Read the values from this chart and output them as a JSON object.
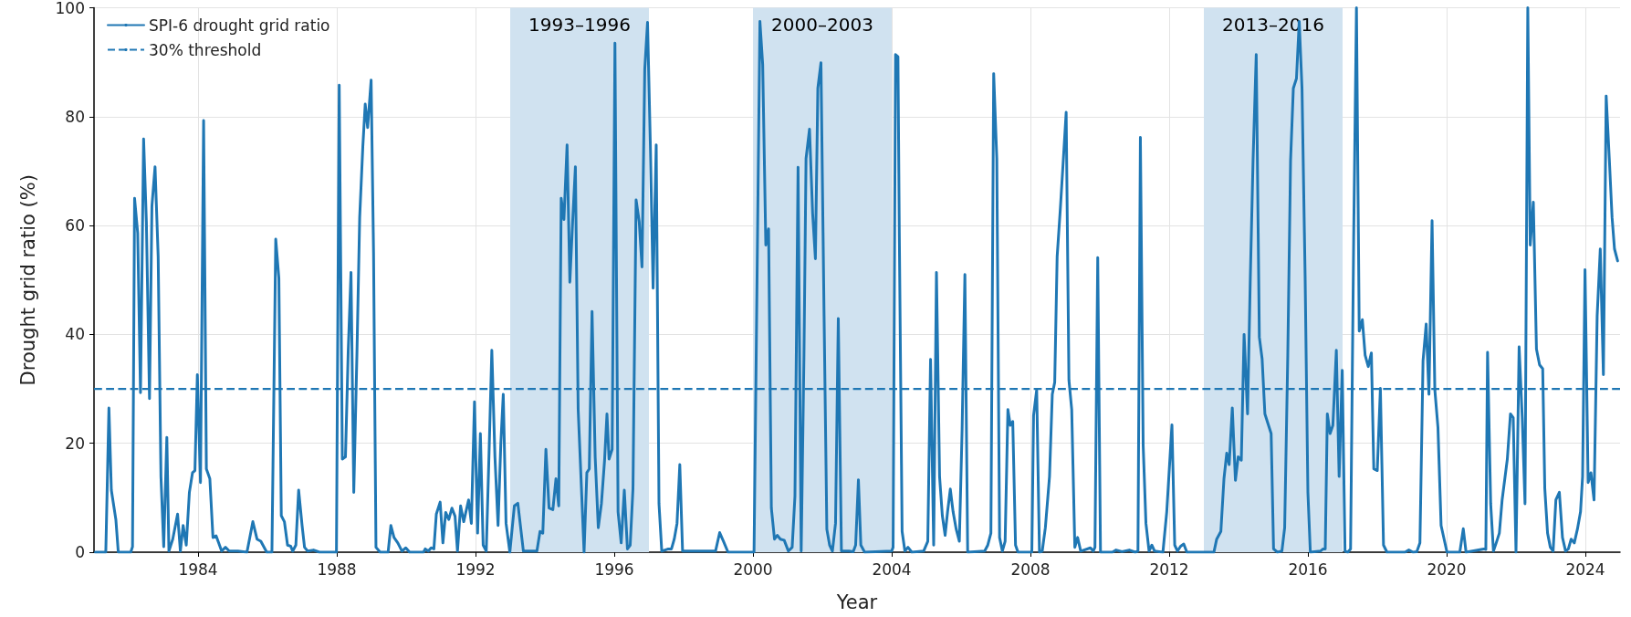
{
  "chart_data": {
    "type": "line",
    "xlabel": "Year",
    "ylabel": "Drought grid ratio (%)",
    "x": [
      1981.04,
      1981.34,
      1981.43,
      1981.5,
      1981.63,
      1981.7,
      1982.06,
      1982.11,
      1982.17,
      1982.26,
      1982.34,
      1982.43,
      1982.51,
      1982.6,
      1982.67,
      1982.76,
      1982.85,
      1982.93,
      1983.01,
      1983.1,
      1983.16,
      1983.27,
      1983.41,
      1983.49,
      1983.57,
      1983.66,
      1983.75,
      1983.84,
      1983.91,
      1983.98,
      1984.07,
      1984.16,
      1984.24,
      1984.34,
      1984.43,
      1984.52,
      1984.68,
      1984.79,
      1984.9,
      1985.15,
      1985.41,
      1985.58,
      1985.7,
      1985.81,
      1985.98,
      1986.13,
      1986.24,
      1986.33,
      1986.4,
      1986.49,
      1986.58,
      1986.67,
      1986.73,
      1986.82,
      1986.9,
      1987.0,
      1987.07,
      1987.16,
      1987.33,
      1987.5,
      1987.99,
      1988.07,
      1988.16,
      1988.25,
      1988.33,
      1988.41,
      1988.49,
      1988.58,
      1988.66,
      1988.75,
      1988.82,
      1988.89,
      1988.99,
      1989.06,
      1989.13,
      1989.25,
      1989.48,
      1989.56,
      1989.65,
      1989.76,
      1989.88,
      1989.99,
      1990.1,
      1990.5,
      1990.55,
      1990.64,
      1990.72,
      1990.8,
      1990.87,
      1990.98,
      1991.06,
      1991.14,
      1991.23,
      1991.32,
      1991.41,
      1991.48,
      1991.57,
      1991.66,
      1991.8,
      1991.88,
      1991.97,
      1992.06,
      1992.14,
      1992.22,
      1992.31,
      1992.39,
      1992.47,
      1992.56,
      1992.65,
      1992.73,
      1992.8,
      1992.88,
      1992.99,
      1993.12,
      1993.22,
      1993.38,
      1993.77,
      1993.86,
      1993.94,
      1994.03,
      1994.12,
      1994.23,
      1994.32,
      1994.4,
      1994.47,
      1994.55,
      1994.64,
      1994.72,
      1994.8,
      1994.88,
      1994.96,
      1995.13,
      1995.21,
      1995.28,
      1995.36,
      1995.45,
      1995.54,
      1995.63,
      1995.72,
      1995.79,
      1995.85,
      1995.94,
      1996.02,
      1996.11,
      1996.2,
      1996.29,
      1996.38,
      1996.46,
      1996.54,
      1996.63,
      1996.72,
      1996.8,
      1996.88,
      1996.96,
      1997.04,
      1997.12,
      1997.21,
      1997.29,
      1997.37,
      1997.56,
      1997.65,
      1997.73,
      1997.81,
      1997.89,
      1997.97,
      1998.92,
      1999.04,
      1999.15,
      1999.28,
      2000.03,
      2000.2,
      2000.28,
      2000.37,
      2000.45,
      2000.53,
      2000.62,
      2000.7,
      2000.79,
      2000.9,
      2001.02,
      2001.13,
      2001.21,
      2001.3,
      2001.39,
      2001.47,
      2001.53,
      2001.63,
      2001.72,
      2001.8,
      2001.87,
      2001.96,
      2002.05,
      2002.13,
      2002.21,
      2002.29,
      2002.38,
      2002.46,
      2002.55,
      2002.77,
      2002.89,
      2002.96,
      2003.04,
      2003.11,
      2003.22,
      2004.0,
      2004.04,
      2004.11,
      2004.18,
      2004.22,
      2004.3,
      2004.38,
      2004.47,
      2004.58,
      2004.92,
      2005.04,
      2005.12,
      2005.21,
      2005.29,
      2005.38,
      2005.46,
      2005.54,
      2005.61,
      2005.69,
      2005.77,
      2005.86,
      2005.95,
      2006.03,
      2006.11,
      2006.19,
      2006.68,
      2006.77,
      2006.86,
      2006.94,
      2007.03,
      2007.11,
      2007.19,
      2007.27,
      2007.35,
      2007.42,
      2007.49,
      2007.57,
      2007.64,
      2008.04,
      2008.09,
      2008.18,
      2008.26,
      2008.34,
      2008.43,
      2008.55,
      2008.63,
      2008.7,
      2008.77,
      2008.86,
      2008.95,
      2009.03,
      2009.11,
      2009.19,
      2009.28,
      2009.36,
      2009.45,
      2009.73,
      2009.81,
      2009.86,
      2009.94,
      2010.02,
      2010.36,
      2010.47,
      2010.64,
      2010.85,
      2011.02,
      2011.1,
      2011.17,
      2011.25,
      2011.33,
      2011.42,
      2011.5,
      2011.58,
      2011.82,
      2011.93,
      2012.08,
      2012.16,
      2012.24,
      2012.33,
      2012.42,
      2012.51,
      2013.29,
      2013.37,
      2013.49,
      2013.58,
      2013.66,
      2013.73,
      2013.82,
      2013.91,
      2013.99,
      2014.08,
      2014.16,
      2014.26,
      2014.34,
      2014.42,
      2014.51,
      2014.6,
      2014.68,
      2014.76,
      2014.85,
      2014.94,
      2015.01,
      2015.12,
      2015.25,
      2015.33,
      2015.42,
      2015.5,
      2015.58,
      2015.67,
      2015.75,
      2015.83,
      2015.92,
      2016.0,
      2016.07,
      2016.36,
      2016.44,
      2016.5,
      2016.56,
      2016.64,
      2016.72,
      2016.82,
      2016.9,
      2016.99,
      2017.07,
      2017.15,
      2017.23,
      2017.32,
      2017.4,
      2017.48,
      2017.57,
      2017.65,
      2017.74,
      2017.83,
      2017.9,
      2018.0,
      2018.09,
      2018.18,
      2018.28,
      2018.8,
      2018.91,
      2019.03,
      2019.14,
      2019.23,
      2019.32,
      2019.41,
      2019.49,
      2019.58,
      2019.66,
      2019.75,
      2019.84,
      2020.01,
      2020.38,
      2020.48,
      2020.56,
      2021.07,
      2021.13,
      2021.18,
      2021.27,
      2021.35,
      2021.43,
      2021.52,
      2021.6,
      2021.75,
      2021.84,
      2021.92,
      2022.0,
      2022.09,
      2022.18,
      2022.26,
      2022.34,
      2022.41,
      2022.5,
      2022.59,
      2022.68,
      2022.77,
      2022.83,
      2022.91,
      2022.99,
      2023.07,
      2023.15,
      2023.25,
      2023.34,
      2023.43,
      2023.51,
      2023.59,
      2023.68,
      2023.77,
      2023.86,
      2023.92,
      2023.99,
      2024.08,
      2024.16,
      2024.25,
      2024.34,
      2024.43,
      2024.52,
      2024.6,
      2024.69,
      2024.77,
      2024.84,
      2024.93
    ],
    "series": [
      {
        "name": "SPI-6 drought grid ratio",
        "color": "#1f77b4",
        "values": [
          0,
          0,
          26.5,
          11.4,
          6,
          0,
          0,
          1,
          65,
          58.6,
          29.3,
          75.9,
          60.7,
          28.2,
          63.6,
          70.8,
          54.3,
          13.9,
          1,
          21.1,
          0.2,
          2.4,
          7,
          0.2,
          4.9,
          1.3,
          11,
          14.6,
          15,
          32.6,
          12.8,
          79.3,
          15.3,
          13.5,
          2.7,
          3,
          0.2,
          0.9,
          0.2,
          0.2,
          0,
          5.6,
          2.4,
          2,
          0,
          0,
          57.5,
          50.3,
          6.7,
          5.6,
          1.3,
          1.1,
          0.2,
          1.3,
          11.4,
          4.9,
          0.9,
          0.2,
          0.4,
          0,
          0,
          85.8,
          17.1,
          17.5,
          37,
          51.4,
          11,
          36.2,
          61.5,
          74.4,
          82.3,
          78,
          86.7,
          55,
          0.9,
          0,
          0,
          4.9,
          2.7,
          1.7,
          0.2,
          0.8,
          0,
          0,
          0.6,
          0.2,
          0.8,
          0.6,
          7,
          9.2,
          1.7,
          7.3,
          6,
          8.1,
          6.6,
          0.2,
          8.5,
          5.6,
          9.6,
          5.3,
          27.6,
          3.5,
          21.8,
          1.3,
          0.2,
          18.2,
          37.1,
          17.5,
          4.9,
          20,
          29,
          5.3,
          0,
          8.5,
          9,
          0.2,
          0.2,
          3.8,
          3.5,
          18.9,
          8.1,
          7.8,
          13.5,
          8.5,
          65,
          61.1,
          74.8,
          49.6,
          60.7,
          70.8,
          26.2,
          0,
          14.6,
          15.3,
          44.2,
          17.5,
          4.5,
          8.9,
          16.8,
          25.4,
          17.1,
          18.9,
          93.5,
          7.4,
          1.7,
          11.4,
          0.6,
          1.3,
          11.7,
          64.7,
          60.7,
          52.4,
          88.8,
          97.3,
          75.1,
          48.5,
          74.8,
          8.9,
          0.2,
          0.6,
          0.6,
          2.4,
          5.3,
          16.1,
          0.2,
          0.2,
          3.6,
          2,
          0,
          0,
          97.5,
          89.6,
          56.4,
          59.4,
          8.1,
          2.4,
          3.1,
          2.4,
          2.2,
          0.2,
          0.9,
          10.3,
          70.7,
          0.2,
          36.2,
          72.3,
          77.7,
          62.2,
          53.9,
          85.2,
          89.9,
          43.4,
          4.2,
          1.3,
          0.2,
          5.3,
          42.9,
          0.2,
          0.2,
          0.1,
          1.3,
          13.3,
          1.3,
          0,
          0.2,
          0.9,
          91.4,
          91,
          57.9,
          3.8,
          0.2,
          0.9,
          0,
          0.2,
          2,
          35.4,
          1.3,
          51.4,
          13.9,
          6.7,
          3.1,
          7.4,
          11.6,
          7.4,
          4.2,
          2,
          22.6,
          51,
          0,
          0.2,
          1.3,
          3.5,
          87.9,
          72.3,
          2.7,
          0.2,
          2,
          26.2,
          23.3,
          24,
          1.3,
          0,
          0,
          25.1,
          29.8,
          0,
          0.2,
          4.5,
          13.9,
          29,
          31.2,
          54.3,
          62.9,
          72.3,
          80.8,
          31.6,
          26.2,
          0.9,
          2.7,
          0.2,
          0.8,
          0.2,
          0.9,
          54.1,
          0,
          0,
          0.4,
          0.1,
          0.4,
          0,
          0.2,
          76.2,
          19.7,
          5.3,
          0.2,
          1.3,
          0.2,
          0,
          7.4,
          23.4,
          1.3,
          0.2,
          1.1,
          1.5,
          0,
          0,
          2.4,
          3.8,
          13.5,
          18.2,
          16.1,
          26.5,
          13.2,
          17.5,
          16.9,
          40,
          25.4,
          50.6,
          72.3,
          91.4,
          39.5,
          35.5,
          25.4,
          23.6,
          21.8,
          0.6,
          0,
          0.2,
          4.5,
          36.2,
          71.9,
          85.2,
          87,
          97.5,
          85.2,
          50.6,
          11,
          0,
          0.2,
          0.6,
          0.6,
          25.4,
          21.8,
          23.3,
          37.1,
          13.9,
          33.4,
          0.2,
          0,
          0.6,
          57.9,
          100,
          40.6,
          42.7,
          36.2,
          34.1,
          36.6,
          15.3,
          15,
          30.1,
          1.3,
          0,
          0,
          0.4,
          0,
          0.1,
          1.7,
          35.2,
          41.9,
          29,
          60.9,
          29.8,
          22.9,
          4.9,
          0,
          0,
          4.3,
          0,
          0.6,
          0.5,
          36.7,
          8.9,
          0.2,
          1.7,
          3.5,
          9.6,
          17.1,
          25.4,
          24.7,
          0,
          37.7,
          24.7,
          8.9,
          100,
          56.4,
          64.3,
          37.3,
          34.4,
          33.7,
          11.7,
          3.5,
          0.9,
          0.2,
          9.6,
          11,
          2.7,
          0.2,
          0.6,
          2.4,
          1.7,
          4.2,
          7.4,
          13.9,
          51.9,
          12.8,
          14.6,
          9.6,
          43.4,
          55.7,
          32.6,
          83.8,
          72.3,
          61.5,
          55.7,
          53.5
        ]
      }
    ],
    "ref_lines": [
      {
        "axis": "y",
        "value": 30,
        "label": "30% threshold",
        "color": "#1f77b4",
        "line_style": "dashed"
      }
    ],
    "bands": [
      {
        "axis": "x",
        "from": 1993,
        "to": 1997,
        "label": "1993–1996",
        "color": "#d0e2f0"
      },
      {
        "axis": "x",
        "from": 2000,
        "to": 2004,
        "label": "2000–2003",
        "color": "#d0e2f0"
      },
      {
        "axis": "x",
        "from": 2013,
        "to": 2017,
        "label": "2013–2016",
        "color": "#d0e2f0"
      }
    ],
    "xlim": [
      1981,
      2025
    ],
    "xticks": [
      1984,
      1988,
      1992,
      1996,
      2000,
      2004,
      2008,
      2012,
      2016,
      2020,
      2024
    ],
    "ylim": [
      0,
      100
    ],
    "yticks": [
      0,
      20,
      40,
      60,
      80,
      100
    ],
    "grid": true,
    "legend": "top left",
    "marker": "none",
    "line_style": "solid"
  }
}
